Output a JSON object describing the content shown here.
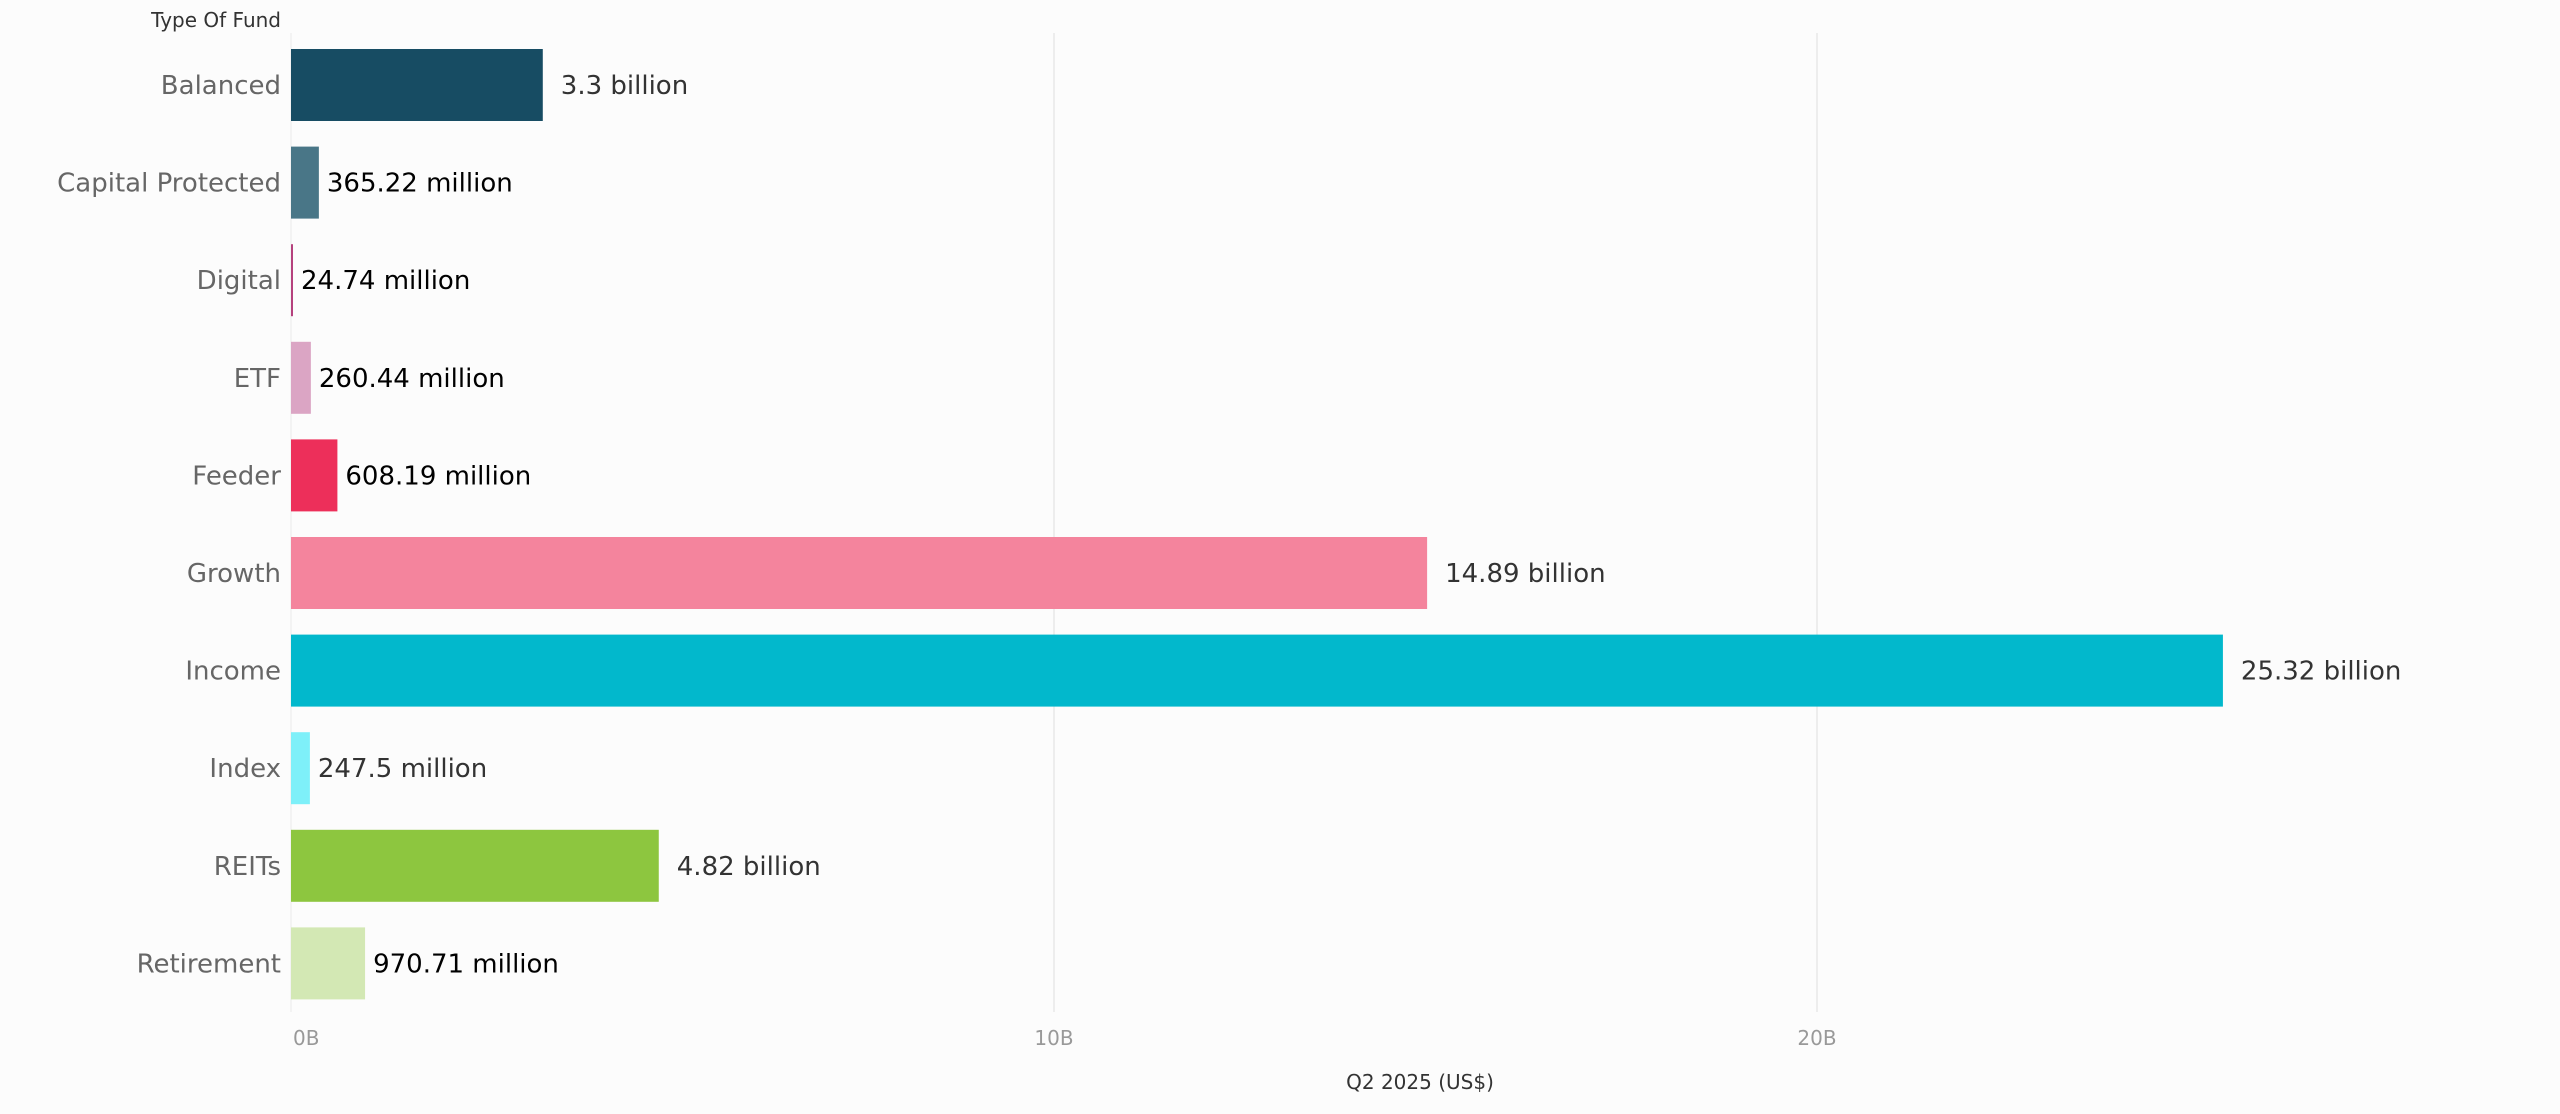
{
  "chart_data": {
    "type": "bar",
    "orientation": "horizontal",
    "row_header": "Type Of Fund",
    "xlabel": "Q2 2025 (US$)",
    "ylabel": "",
    "xlim": [
      0,
      29.5
    ],
    "x_unit": "billion US$",
    "x_ticks": [
      0,
      10,
      20
    ],
    "x_tick_labels": [
      "0B",
      "10B",
      "20B"
    ],
    "grid": "vertical",
    "categories": [
      "Balanced",
      "Capital Protected",
      "Digital",
      "ETF",
      "Feeder",
      "Growth",
      "Income",
      "Index",
      "REITs",
      "Retirement"
    ],
    "values": [
      3.3,
      0.36522,
      0.02474,
      0.26044,
      0.60819,
      14.89,
      25.32,
      0.2475,
      4.82,
      0.97071
    ],
    "data_labels": [
      "3.3 billion",
      "365.22 million",
      "24.74 million",
      "260.44 million",
      "608.19 million",
      "14.89 billion",
      "25.32 billion",
      "247.5 million",
      "4.82 billion",
      "970.71 million"
    ],
    "colors": [
      "#174c63",
      "#497687",
      "#b5417d",
      "#dba5c4",
      "#ed2f5a",
      "#f4849d",
      "#02b8cc",
      "#7ef0f9",
      "#8dc63f",
      "#d3e8b4"
    ],
    "label_colors": [
      "#333333",
      "#000000",
      "#000000",
      "#000000",
      "#000000",
      "#333333",
      "#333333",
      "#333333",
      "#333333",
      "#000000"
    ]
  }
}
